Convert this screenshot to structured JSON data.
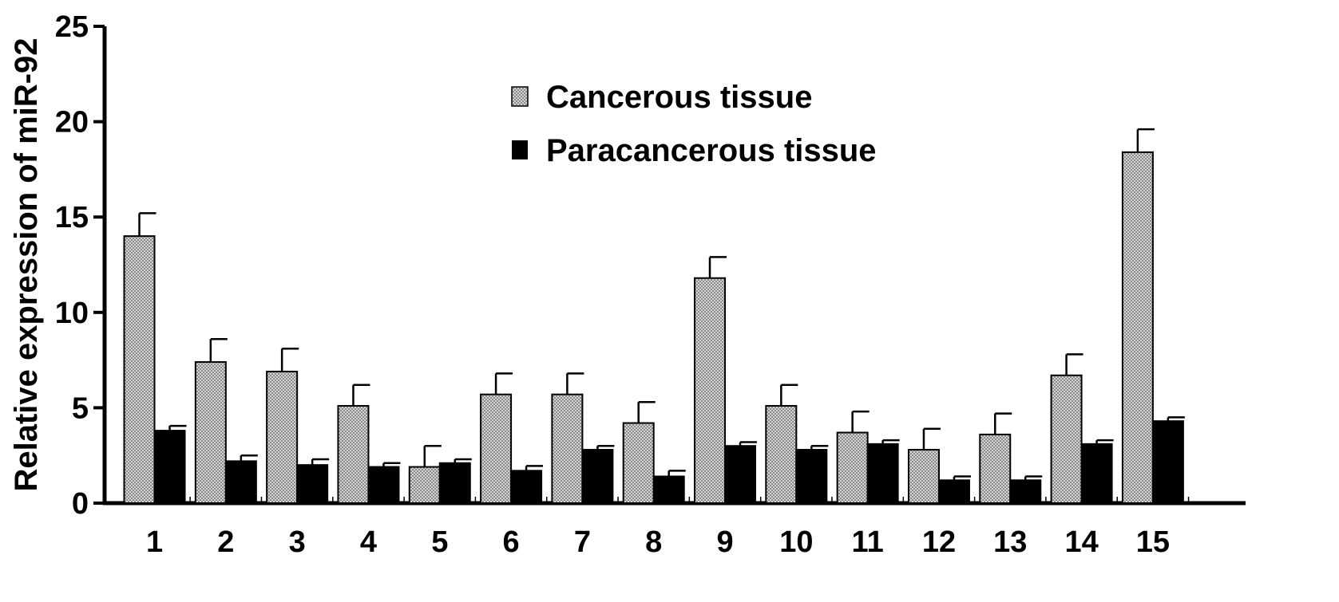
{
  "chart_data": {
    "type": "bar",
    "ylabel": "Relative expression of miR-92",
    "xlabel": "",
    "ylim": [
      0,
      25
    ],
    "yticks": [
      "0",
      "5",
      "10",
      "15",
      "20",
      "25"
    ],
    "categories": [
      "1",
      "2",
      "3",
      "4",
      "5",
      "6",
      "7",
      "8",
      "9",
      "10",
      "11",
      "12",
      "13",
      "14",
      "15"
    ],
    "series": [
      {
        "name": "Cancerous tissue",
        "color": "#bdbdbd",
        "pattern": "dotted-gray",
        "values": [
          14.0,
          7.4,
          6.9,
          5.1,
          1.9,
          5.7,
          5.7,
          4.2,
          11.8,
          5.1,
          3.7,
          2.8,
          3.6,
          6.7,
          18.4
        ],
        "errors": [
          1.2,
          1.2,
          1.2,
          1.1,
          1.1,
          1.1,
          1.1,
          1.1,
          1.1,
          1.1,
          1.1,
          1.1,
          1.1,
          1.1,
          1.2
        ]
      },
      {
        "name": "Paracancerous tissue",
        "color": "#000000",
        "values": [
          3.8,
          2.2,
          2.0,
          1.9,
          2.1,
          1.7,
          2.8,
          1.4,
          3.0,
          2.8,
          3.1,
          1.2,
          1.2,
          3.1,
          4.3
        ],
        "errors": [
          0.25,
          0.3,
          0.3,
          0.2,
          0.2,
          0.25,
          0.2,
          0.3,
          0.2,
          0.2,
          0.2,
          0.2,
          0.2,
          0.2,
          0.2
        ]
      }
    ],
    "legend_position": "top-center",
    "grid": false
  }
}
